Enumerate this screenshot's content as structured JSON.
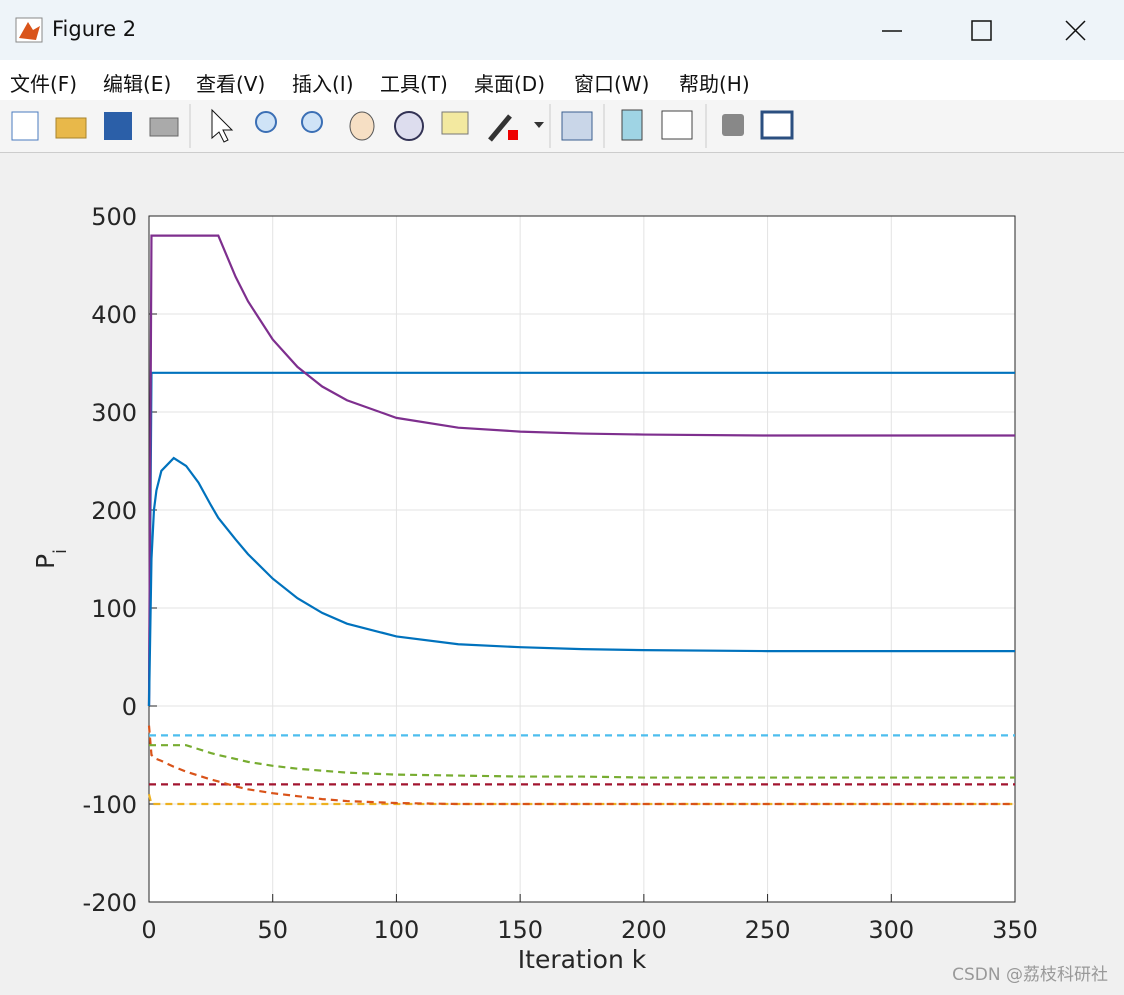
{
  "window": {
    "title": "Figure 2",
    "menu": [
      "文件(F)",
      "编辑(E)",
      "查看(V)",
      "插入(I)",
      "工具(T)",
      "桌面(D)",
      "窗口(W)",
      "帮助(H)"
    ],
    "watermark": "CSDN @荔枝科研社"
  },
  "chart_data": {
    "type": "line",
    "xlabel": "Iteration k",
    "ylabel": "P",
    "ylabel_subscript": "i",
    "x": [
      0,
      1,
      2,
      3,
      5,
      10,
      15,
      20,
      25,
      28,
      35,
      40,
      50,
      60,
      70,
      80,
      100,
      125,
      150,
      175,
      200,
      250,
      300,
      350
    ],
    "xlim": [
      0,
      350
    ],
    "ylim": [
      -200,
      500
    ],
    "xticks": [
      0,
      50,
      100,
      150,
      200,
      250,
      300,
      350
    ],
    "yticks": [
      -200,
      -100,
      0,
      100,
      200,
      300,
      400,
      500
    ],
    "grid": true,
    "series": [
      {
        "color": "#EDB120",
        "dash": true,
        "values": [
          -90,
          -100,
          -100,
          -100,
          -100,
          -100,
          -100,
          -100,
          -100,
          -100,
          -100,
          -100,
          -100,
          -100,
          -100,
          -100,
          -100,
          -100,
          -100,
          -100,
          -100,
          -100,
          -100,
          -100
        ]
      },
      {
        "color": "#A2142F",
        "dash": true,
        "values": [
          -80,
          -80,
          -80,
          -80,
          -80,
          -80,
          -80,
          -80,
          -80,
          -80,
          -80,
          -80,
          -80,
          -80,
          -80,
          -80,
          -80,
          -80,
          -80,
          -80,
          -80,
          -80,
          -80,
          -80
        ]
      },
      {
        "color": "#D95319",
        "dash": true,
        "values": [
          -20,
          -50,
          -52,
          -54,
          -56,
          -62,
          -67,
          -71,
          -75,
          -77,
          -82,
          -85,
          -89,
          -92,
          -95,
          -97,
          -99,
          -100,
          -100,
          -100,
          -100,
          -100,
          -100,
          -100
        ]
      },
      {
        "color": "#77AC30",
        "dash": true,
        "values": [
          -40,
          -40,
          -40,
          -40,
          -40,
          -40,
          -40,
          -44,
          -48,
          -50,
          -54,
          -57,
          -61,
          -64,
          -66,
          -68,
          -70,
          -71,
          -72,
          -72,
          -73,
          -73,
          -73,
          -73
        ]
      },
      {
        "color": "#4DBEEE",
        "dash": true,
        "values": [
          -30,
          -30,
          -30,
          -30,
          -30,
          -30,
          -30,
          -30,
          -30,
          -30,
          -30,
          -30,
          -30,
          -30,
          -30,
          -30,
          -30,
          -30,
          -30,
          -30,
          -30,
          -30,
          -30,
          -30
        ]
      },
      {
        "color": "#0072BD",
        "dash": false,
        "values": [
          0,
          340,
          340,
          340,
          340,
          340,
          340,
          340,
          340,
          340,
          340,
          340,
          340,
          340,
          340,
          340,
          340,
          340,
          340,
          340,
          340,
          340,
          340,
          340
        ]
      },
      {
        "color": "#7E2F8E",
        "dash": false,
        "values": [
          0,
          480,
          480,
          480,
          480,
          480,
          480,
          480,
          480,
          480,
          438,
          413,
          374,
          346,
          326,
          312,
          294,
          284,
          280,
          278,
          277,
          276,
          276,
          276
        ]
      },
      {
        "color": "#0072BD",
        "dash": false,
        "values": [
          0,
          150,
          200,
          220,
          240,
          253,
          245,
          228,
          205,
          192,
          170,
          155,
          130,
          110,
          95,
          84,
          71,
          63,
          60,
          58,
          57,
          56,
          56,
          56
        ]
      }
    ]
  }
}
